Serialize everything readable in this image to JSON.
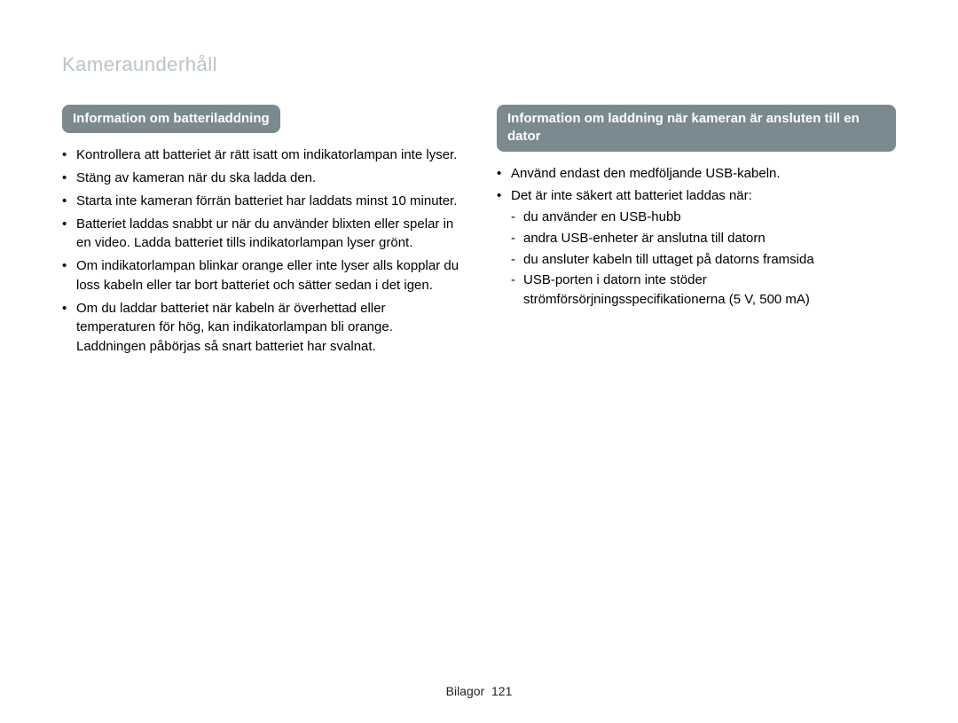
{
  "header": {
    "title": "Kameraunderhåll"
  },
  "left": {
    "heading": "Information om batteriladdning",
    "items": [
      "Kontrollera att batteriet är rätt isatt om indikatorlampan inte lyser.",
      "Stäng av kameran när du ska ladda den.",
      "Starta inte kameran förrän batteriet har laddats minst 10 minuter.",
      "Batteriet laddas snabbt ur när du använder blixten eller spelar in en video. Ladda batteriet tills indikatorlampan lyser grönt.",
      "Om indikatorlampan blinkar orange eller inte lyser alls kopplar du loss kabeln eller tar bort batteriet och sätter sedan i det igen.",
      "Om du laddar batteriet när kabeln är överhettad eller temperaturen för hög, kan indikatorlampan bli orange. Laddningen påbörjas så snart batteriet har svalnat."
    ]
  },
  "right": {
    "heading": "Information om laddning när kameran är ansluten till en dator",
    "items": [
      {
        "text": "Använd endast den medföljande USB-kabeln."
      },
      {
        "text": "Det är inte säkert att batteriet laddas när:",
        "sub": [
          "du använder en USB-hubb",
          "andra USB-enheter är anslutna till datorn",
          "du ansluter kabeln till uttaget på datorns framsida",
          "USB-porten i datorn inte stöder strömförsörjningsspecifikationerna (5 V, 500 mA)"
        ]
      }
    ]
  },
  "footer": {
    "section": "Bilagor",
    "page": "121"
  },
  "style": {
    "title_color": "#b9c4c6",
    "pill_bg": "#7b8990",
    "pill_fg": "#ffffff",
    "body_fontsize": 15,
    "title_fontsize": 22
  }
}
